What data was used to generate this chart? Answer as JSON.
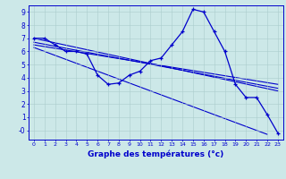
{
  "xlabel": "Graphe des températures (°c)",
  "background_color": "#cce8e8",
  "line_color": "#0000cc",
  "grid_color": "#aacccc",
  "xlim": [
    -0.5,
    23.5
  ],
  "ylim": [
    -0.7,
    9.5
  ],
  "yticks": [
    0,
    1,
    2,
    3,
    4,
    5,
    6,
    7,
    8,
    9
  ],
  "ytick_labels": [
    "-0",
    "1",
    "2",
    "3",
    "4",
    "5",
    "6",
    "7",
    "8",
    "9"
  ],
  "xticks": [
    0,
    1,
    2,
    3,
    4,
    5,
    6,
    7,
    8,
    9,
    10,
    11,
    12,
    13,
    14,
    15,
    16,
    17,
    18,
    19,
    20,
    21,
    22,
    23
  ],
  "main_temps": [
    7.0,
    7.0,
    6.5,
    6.0,
    6.0,
    5.8,
    4.2,
    3.5,
    3.6,
    4.2,
    4.5,
    5.3,
    5.5,
    6.5,
    7.5,
    9.2,
    9.0,
    7.5,
    6.0,
    3.5,
    2.5,
    2.5,
    1.2,
    -0.2
  ],
  "trend_lines": [
    {
      "x0": 0,
      "y0": 7.0,
      "x1": 23,
      "y1": 3.0
    },
    {
      "x0": 0,
      "y0": 6.7,
      "x1": 23,
      "y1": 3.2
    },
    {
      "x0": 0,
      "y0": 6.5,
      "x1": 23,
      "y1": 3.5
    },
    {
      "x0": 0,
      "y0": 6.3,
      "x1": 22,
      "y1": -0.3
    }
  ]
}
